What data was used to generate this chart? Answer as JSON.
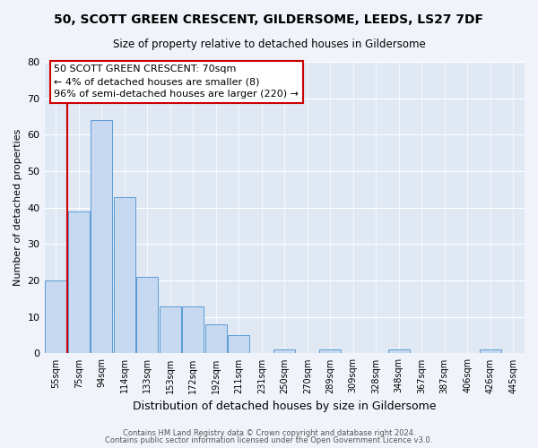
{
  "title": "50, SCOTT GREEN CRESCENT, GILDERSOME, LEEDS, LS27 7DF",
  "subtitle": "Size of property relative to detached houses in Gildersome",
  "xlabel": "Distribution of detached houses by size in Gildersome",
  "ylabel": "Number of detached properties",
  "bin_labels": [
    "55sqm",
    "75sqm",
    "94sqm",
    "114sqm",
    "133sqm",
    "153sqm",
    "172sqm",
    "192sqm",
    "211sqm",
    "231sqm",
    "250sqm",
    "270sqm",
    "289sqm",
    "309sqm",
    "328sqm",
    "348sqm",
    "367sqm",
    "387sqm",
    "406sqm",
    "426sqm",
    "445sqm"
  ],
  "bar_heights": [
    20,
    39,
    64,
    43,
    21,
    13,
    13,
    8,
    5,
    0,
    1,
    0,
    1,
    0,
    0,
    1,
    0,
    0,
    0,
    1,
    0
  ],
  "bar_color": "#c6d9f0",
  "bar_edge_color": "#5b9bd5",
  "ylim": [
    0,
    80
  ],
  "yticks": [
    0,
    10,
    20,
    30,
    40,
    50,
    60,
    70,
    80
  ],
  "property_line_color": "#cc0000",
  "annotation_title": "50 SCOTT GREEN CRESCENT: 70sqm",
  "annotation_line1": "← 4% of detached houses are smaller (8)",
  "annotation_line2": "96% of semi-detached houses are larger (220) →",
  "annotation_box_color": "#cc0000",
  "footer_line1": "Contains HM Land Registry data © Crown copyright and database right 2024.",
  "footer_line2": "Contains public sector information licensed under the Open Government Licence v3.0.",
  "background_color": "#f0f4fa",
  "plot_background_color": "#e0e8f4"
}
